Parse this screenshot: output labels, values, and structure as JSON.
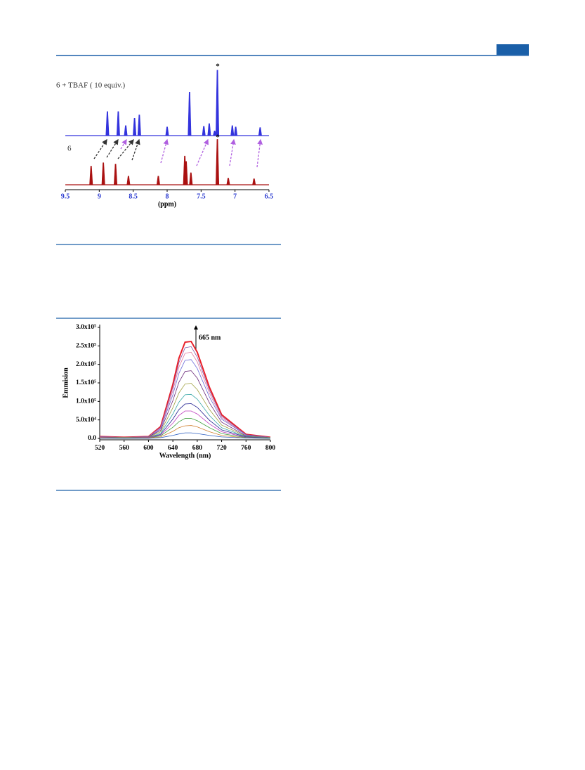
{
  "chart_data": [
    {
      "type": "spectrum",
      "xlabel": "(ppm)",
      "xlim": [
        9.5,
        6.5
      ],
      "xticks": [
        9.5,
        9.0,
        8.5,
        8.0,
        7.5,
        7.0,
        6.5
      ],
      "annotations": [
        "*",
        "*"
      ],
      "series": [
        {
          "name": "6 + TBAF ( 10 equiv.)",
          "color": "#3333dd",
          "x": [
            8.88,
            8.72,
            8.61,
            8.48,
            8.41,
            8.0,
            7.67,
            7.46,
            7.38,
            7.3,
            7.26,
            7.04,
            6.99,
            6.63
          ],
          "values": [
            36,
            36,
            15,
            26,
            31,
            13,
            65,
            14,
            18,
            7,
            98,
            15,
            13,
            12
          ]
        },
        {
          "name": "6",
          "color": "#aa1111",
          "x": [
            9.12,
            8.94,
            8.76,
            8.57,
            8.13,
            7.74,
            7.72,
            7.65,
            7.26,
            7.1,
            6.72
          ],
          "values": [
            28,
            33,
            31,
            13,
            13,
            43,
            35,
            18,
            68,
            10,
            9
          ]
        }
      ]
    },
    {
      "type": "line",
      "xlabel": "Wavelength (nm)",
      "ylabel": "Emmision",
      "annotation": "665 nm",
      "x": [
        520,
        560,
        600,
        620,
        640,
        650,
        660,
        670,
        680,
        700,
        720,
        760,
        800
      ],
      "xlim": [
        520,
        800
      ],
      "xticks": [
        520,
        560,
        600,
        640,
        680,
        720,
        760,
        800
      ],
      "ylim": [
        0,
        300000
      ],
      "yticks": [
        {
          "value": 0,
          "label": "0.0"
        },
        {
          "value": 50000,
          "label": "5.0x10⁴"
        },
        {
          "value": 100000,
          "label": "1.0x10⁵"
        },
        {
          "value": 150000,
          "label": "1.5x10⁵"
        },
        {
          "value": 200000,
          "label": "2.0x10⁵"
        },
        {
          "value": 250000,
          "label": "2.5x10⁵"
        },
        {
          "value": 300000,
          "label": "3.0x10⁵"
        }
      ],
      "series": [
        {
          "color": "#e8202a",
          "values": [
            5000,
            3000,
            5000,
            32000,
            146000,
            217000,
            260000,
            262000,
            233000,
            138000,
            64000,
            11000,
            3000
          ]
        },
        {
          "color": "#8a5aa8",
          "values": [
            5000,
            3000,
            5000,
            30000,
            138000,
            205000,
            245000,
            248000,
            220000,
            130000,
            60000,
            10000,
            3000
          ]
        },
        {
          "color": "#e07aa0",
          "values": [
            5000,
            2000,
            5000,
            28000,
            129000,
            193000,
            230000,
            233000,
            207000,
            122000,
            56000,
            9000,
            2000
          ]
        },
        {
          "color": "#6a6ad8",
          "values": [
            4000,
            2000,
            4000,
            26000,
            118000,
            176000,
            211000,
            213000,
            189000,
            112000,
            52000,
            9000,
            2000
          ]
        },
        {
          "color": "#6a2a7a",
          "values": [
            4000,
            2000,
            4000,
            22000,
            102000,
            152000,
            181000,
            183000,
            163000,
            96000,
            44000,
            7000,
            2000
          ]
        },
        {
          "color": "#a0a040",
          "values": [
            3000,
            2000,
            3000,
            18000,
            83000,
            123000,
            147000,
            149000,
            132000,
            78000,
            36000,
            6000,
            2000
          ]
        },
        {
          "color": "#3aa8a8",
          "values": [
            2000,
            1000,
            2000,
            14000,
            66000,
            98000,
            118000,
            119000,
            106000,
            62000,
            29000,
            5000,
            1000
          ]
        },
        {
          "color": "#202090",
          "values": [
            2000,
            1000,
            2000,
            11000,
            52000,
            78000,
            93000,
            94000,
            84000,
            49000,
            23000,
            4000,
            1000
          ]
        },
        {
          "color": "#c040c0",
          "values": [
            2000,
            1000,
            2000,
            9000,
            41000,
            62000,
            74000,
            74000,
            66000,
            39000,
            18000,
            3000,
            1000
          ]
        },
        {
          "color": "#40a040",
          "values": [
            1000,
            1000,
            1000,
            7000,
            30000,
            45000,
            54000,
            54000,
            48000,
            29000,
            13000,
            2000,
            1000
          ]
        },
        {
          "color": "#d08030",
          "values": [
            1000,
            0,
            1000,
            4000,
            19000,
            29000,
            34000,
            35000,
            31000,
            18000,
            8000,
            1000,
            0
          ]
        },
        {
          "color": "#3060c0",
          "values": [
            0,
            0,
            0,
            2000,
            8000,
            12000,
            15000,
            15000,
            13000,
            8000,
            4000,
            1000,
            0
          ]
        }
      ]
    }
  ]
}
